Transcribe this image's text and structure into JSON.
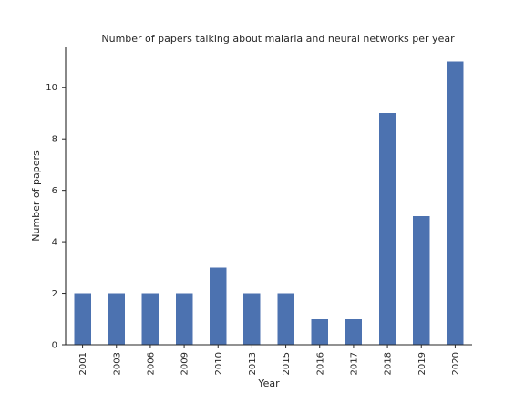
{
  "chart_data": {
    "type": "bar",
    "title": "Number of papers talking about malaria and neural networks per year",
    "xlabel": "Year",
    "ylabel": "Number of papers",
    "categories": [
      "2001",
      "2003",
      "2006",
      "2009",
      "2010",
      "2013",
      "2015",
      "2016",
      "2017",
      "2018",
      "2019",
      "2020"
    ],
    "values": [
      2,
      2,
      2,
      2,
      3,
      2,
      2,
      1,
      1,
      9,
      5,
      11
    ],
    "yticks": [
      0,
      2,
      4,
      6,
      8,
      10
    ],
    "ylim": [
      0,
      11.55
    ],
    "grid": false,
    "bar_color": "#4c72b0"
  }
}
